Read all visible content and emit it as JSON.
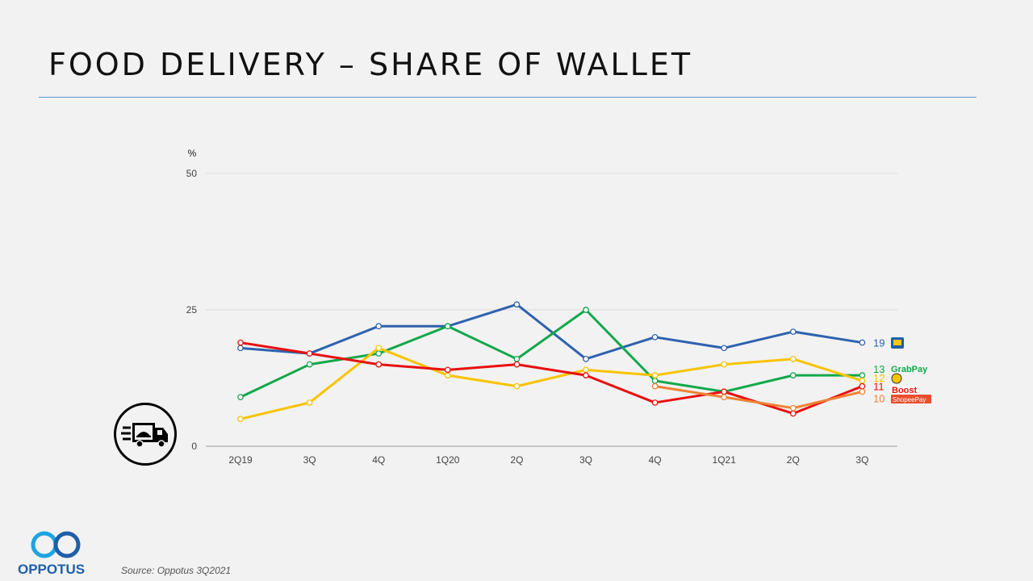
{
  "slide": {
    "title": "FOOD DELIVERY – SHARE OF WALLET",
    "source": "Source: Oppotus 3Q2021",
    "logo_text": "OPPOTUS"
  },
  "chart_data": {
    "type": "line",
    "ylabel": "%",
    "ylim": [
      0,
      50
    ],
    "yticks": [
      "0",
      "25",
      "50"
    ],
    "categories": [
      "2Q19",
      "3Q",
      "4Q",
      "1Q20",
      "2Q",
      "3Q",
      "4Q",
      "1Q21",
      "2Q",
      "3Q"
    ],
    "series": [
      {
        "name": "Touch 'n Go eWallet",
        "color": "#2e62ae",
        "values": [
          18,
          17,
          22,
          22,
          26,
          16,
          20,
          18,
          21,
          19
        ],
        "end_label": "19"
      },
      {
        "name": "GrabPay",
        "color": "#12a84a",
        "values": [
          9,
          15,
          17,
          22,
          16,
          25,
          12,
          10,
          13,
          13
        ],
        "end_label": "13"
      },
      {
        "name": "Maybank",
        "color": "#f9c300",
        "values": [
          5,
          8,
          18,
          13,
          11,
          14,
          13,
          15,
          16,
          12
        ],
        "end_label": "12"
      },
      {
        "name": "Boost",
        "color": "#e8100e",
        "values": [
          19,
          17,
          15,
          14,
          15,
          13,
          8,
          10,
          6,
          11
        ],
        "end_label": "11"
      },
      {
        "name": "ShopeePay",
        "color": "#ee8234",
        "values": [
          null,
          null,
          null,
          null,
          null,
          null,
          11,
          9,
          7,
          10
        ],
        "end_label": "10"
      }
    ],
    "brand_labels": {
      "grabpay": "GrabPay",
      "boost": "Boost",
      "shopeepay": "ShopeePay"
    }
  }
}
